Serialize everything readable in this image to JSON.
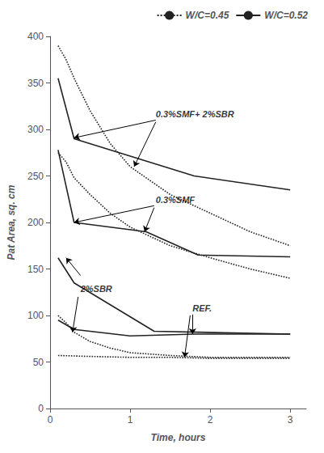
{
  "chart_data": {
    "type": "line",
    "xlabel": "Time, hours",
    "ylabel": "Pat Area, sq. cm",
    "xlim": [
      0,
      3.2
    ],
    "ylim": [
      0,
      400
    ],
    "xticks": [
      0,
      1,
      2,
      3
    ],
    "yticks": [
      0,
      50,
      100,
      150,
      200,
      250,
      300,
      350,
      400
    ],
    "grid": false,
    "legend": "upper right",
    "series": [
      {
        "name": "W/C=0.45",
        "line_style": "dotted",
        "color": "#222222",
        "x": [
          0.1,
          0.2,
          0.3,
          0.5,
          0.75,
          1.0,
          1.5,
          2.0,
          2.5,
          3.0
        ],
        "values": [
          390,
          375,
          355,
          320,
          285,
          260,
          230,
          210,
          190,
          175
        ]
      },
      {
        "name": "W/C=0.52",
        "line_style": "solid",
        "color": "#222222",
        "x": [
          0.1,
          0.3,
          1.8,
          3.0
        ],
        "values": [
          355,
          290,
          250,
          235
        ]
      },
      {
        "name": "W/C=0.45",
        "line_style": "dotted",
        "color": "#222222",
        "x": [
          0.1,
          0.2,
          0.3,
          0.5,
          0.75,
          1.0,
          1.5,
          2.0,
          2.5,
          3.0
        ],
        "values": [
          275,
          265,
          248,
          230,
          210,
          195,
          175,
          162,
          150,
          140
        ]
      },
      {
        "name": "W/C=0.52",
        "line_style": "solid",
        "color": "#222222",
        "x": [
          0.1,
          0.3,
          1.2,
          1.85,
          3.0
        ],
        "values": [
          278,
          200,
          190,
          165,
          163
        ]
      },
      {
        "name": "W/C=0.45",
        "line_style": "dotted",
        "color": "#222222",
        "x": [
          0.1,
          0.2,
          0.3,
          0.5,
          0.75,
          1.0,
          1.5,
          2.0,
          2.5,
          3.0
        ],
        "values": [
          100,
          92,
          82,
          72,
          65,
          60,
          57,
          55,
          55,
          55
        ]
      },
      {
        "name": "W/C=0.52",
        "line_style": "solid",
        "color": "#222222",
        "x": [
          0.1,
          0.3,
          1.3,
          3.0
        ],
        "values": [
          162,
          135,
          83,
          80
        ]
      },
      {
        "name": "W/C=0.45",
        "line_style": "dotted",
        "color": "#222222",
        "x": [
          0.1,
          0.5,
          1.0,
          1.5,
          2.0,
          2.5,
          3.0
        ],
        "values": [
          57,
          56,
          55,
          55,
          54,
          54,
          54
        ]
      },
      {
        "name": "W/C=0.52",
        "line_style": "solid",
        "color": "#222222",
        "x": [
          0.1,
          0.3,
          1.0,
          1.8,
          3.0
        ],
        "values": [
          95,
          85,
          78,
          80,
          80
        ]
      }
    ],
    "annotations": [
      {
        "text": "0.3%SMF+ 2%SBR",
        "x": 1.32,
        "y": 312,
        "arrows": [
          {
            "from": [
              1.32,
              310
            ],
            "to": [
              0.3,
              291
            ]
          },
          {
            "from": [
              1.32,
              308
            ],
            "to": [
              1.05,
              260
            ]
          }
        ]
      },
      {
        "text": "0.3%SMF",
        "x": 1.32,
        "y": 220,
        "arrows": [
          {
            "from": [
              1.3,
              218
            ],
            "to": [
              0.3,
              200
            ]
          },
          {
            "from": [
              1.3,
              216
            ],
            "to": [
              1.18,
              190
            ]
          }
        ]
      },
      {
        "text": "2%SBR",
        "x": 0.38,
        "y": 124,
        "arrows": [
          {
            "from": [
              0.38,
              143
            ],
            "to": [
              0.2,
              162
            ]
          },
          {
            "from": [
              0.35,
              120
            ],
            "to": [
              0.28,
              82
            ]
          }
        ]
      },
      {
        "text": "REF.",
        "x": 1.78,
        "y": 103,
        "arrows": [
          {
            "from": [
              1.78,
              101
            ],
            "to": [
              1.78,
              80
            ]
          },
          {
            "from": [
              1.75,
              100
            ],
            "to": [
              1.68,
              55
            ]
          }
        ]
      }
    ]
  }
}
